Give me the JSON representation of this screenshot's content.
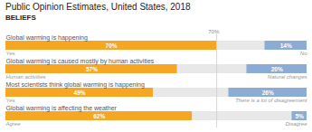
{
  "chart_data": {
    "type": "bar",
    "orientation": "horizontal",
    "stacked": true,
    "title": "Public Opinion Estimates, United States, 2018",
    "subtitle": "BELIEFS",
    "categories": [
      "Global warming is happening",
      "Global warming is caused mostly by human activities",
      "Most scientists think global warming is happening",
      "Global warming is affecting the weather"
    ],
    "series": [
      {
        "color": "#F5A623",
        "values": [
          70,
          57,
          49,
          62
        ],
        "value_labels": [
          "70%",
          "57%",
          "49%",
          "62%"
        ],
        "data_labels": true,
        "sublabels": [
          "Yes",
          "Human activities",
          "Yes",
          "Agree"
        ]
      },
      {
        "color": "#E8E8E8",
        "values": [
          16,
          23,
          25,
          33
        ],
        "data_labels": false
      },
      {
        "color": "#8BADD3",
        "values": [
          14,
          20,
          26,
          5
        ],
        "value_labels": [
          "14%",
          "20%",
          "26%",
          "5%"
        ],
        "data_labels": true,
        "sublabels": [
          "No",
          "Natural changes",
          "There is a lot of disagreement",
          "Disagree"
        ]
      }
    ],
    "xlim": [
      0,
      100
    ],
    "tick_labels": false,
    "grid": false,
    "reference_lines": [
      70
    ],
    "annotations": [
      {
        "text": "70%",
        "x": 69
      }
    ]
  }
}
